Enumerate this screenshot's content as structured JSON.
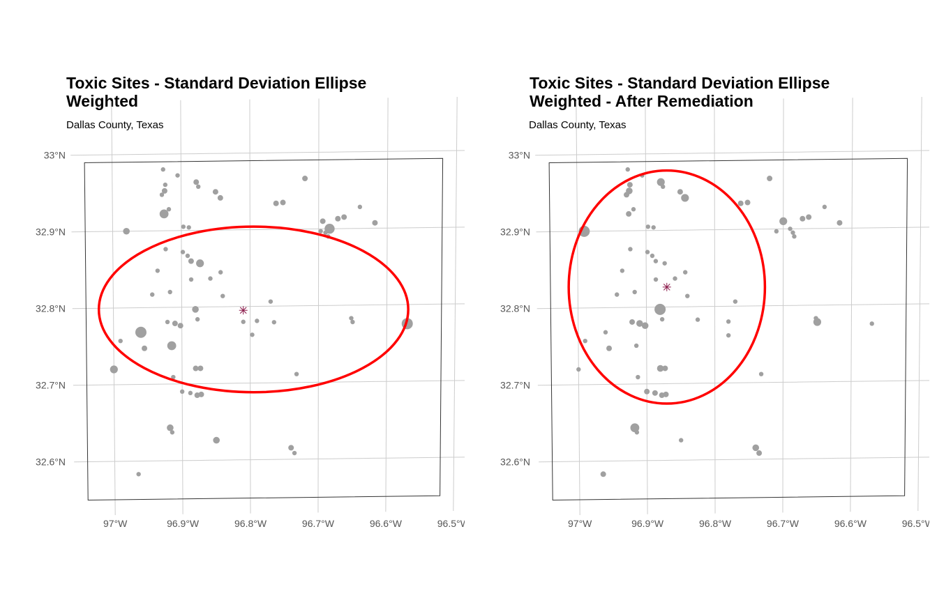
{
  "panels": [
    {
      "title_line1": "Toxic Sites - Standard Deviation Ellipse",
      "title_line2": "Weighted",
      "subtitle": "Dallas County, Texas",
      "y_ticks": [
        "33°N",
        "32.9°N",
        "32.8°N",
        "32.7°N",
        "32.6°N"
      ],
      "x_ticks": [
        "97°W",
        "96.9°W",
        "96.8°W",
        "96.7°W",
        "96.6°W",
        "96.5°W"
      ],
      "mean_center": {
        "lon": -96.81,
        "lat": 32.795
      },
      "ellipse": {
        "center_lon": -96.795,
        "center_lat": 32.796,
        "semi_major_deg_lon": 0.245,
        "semi_minor_deg_lat": 0.108,
        "color": "#ff0000"
      },
      "sites": [
        {
          "lon": -96.926,
          "lat": 32.98,
          "w": 1
        },
        {
          "lon": -96.923,
          "lat": 32.96,
          "w": 1
        },
        {
          "lon": -96.924,
          "lat": 32.952,
          "w": 1.5
        },
        {
          "lon": -96.928,
          "lat": 32.947,
          "w": 1
        },
        {
          "lon": -96.905,
          "lat": 32.972,
          "w": 1
        },
        {
          "lon": -96.878,
          "lat": 32.963,
          "w": 1.5
        },
        {
          "lon": -96.875,
          "lat": 32.957,
          "w": 1
        },
        {
          "lon": -96.85,
          "lat": 32.95,
          "w": 1.5
        },
        {
          "lon": -96.843,
          "lat": 32.942,
          "w": 1.5
        },
        {
          "lon": -96.72,
          "lat": 32.966,
          "w": 1.5
        },
        {
          "lon": -96.762,
          "lat": 32.934,
          "w": 1.5
        },
        {
          "lon": -96.752,
          "lat": 32.935,
          "w": 1.5
        },
        {
          "lon": -96.925,
          "lat": 32.922,
          "w": 3
        },
        {
          "lon": -96.918,
          "lat": 32.928,
          "w": 1
        },
        {
          "lon": -96.897,
          "lat": 32.905,
          "w": 1
        },
        {
          "lon": -96.889,
          "lat": 32.904,
          "w": 1
        },
        {
          "lon": -96.98,
          "lat": 32.9,
          "w": 2
        },
        {
          "lon": -96.923,
          "lat": 32.876,
          "w": 1
        },
        {
          "lon": -96.898,
          "lat": 32.872,
          "w": 1
        },
        {
          "lon": -96.891,
          "lat": 32.867,
          "w": 1
        },
        {
          "lon": -96.886,
          "lat": 32.86,
          "w": 1.5
        },
        {
          "lon": -96.873,
          "lat": 32.857,
          "w": 2.5
        },
        {
          "lon": -96.694,
          "lat": 32.91,
          "w": 1.5
        },
        {
          "lon": -96.684,
          "lat": 32.9,
          "w": 3.5
        },
        {
          "lon": -96.697,
          "lat": 32.897,
          "w": 1
        },
        {
          "lon": -96.672,
          "lat": 32.913,
          "w": 1.5
        },
        {
          "lon": -96.663,
          "lat": 32.915,
          "w": 1.5
        },
        {
          "lon": -96.64,
          "lat": 32.928,
          "w": 1
        },
        {
          "lon": -96.618,
          "lat": 32.907,
          "w": 1.5
        },
        {
          "lon": -96.69,
          "lat": 32.895,
          "w": 1
        },
        {
          "lon": -96.686,
          "lat": 32.89,
          "w": 1
        },
        {
          "lon": -96.935,
          "lat": 32.848,
          "w": 1
        },
        {
          "lon": -96.843,
          "lat": 32.845,
          "w": 1
        },
        {
          "lon": -96.886,
          "lat": 32.836,
          "w": 1
        },
        {
          "lon": -96.858,
          "lat": 32.837,
          "w": 1
        },
        {
          "lon": -96.917,
          "lat": 32.82,
          "w": 1
        },
        {
          "lon": -96.943,
          "lat": 32.817,
          "w": 1
        },
        {
          "lon": -96.84,
          "lat": 32.814,
          "w": 1
        },
        {
          "lon": -96.88,
          "lat": 32.797,
          "w": 2
        },
        {
          "lon": -96.91,
          "lat": 32.779,
          "w": 1.5
        },
        {
          "lon": -96.902,
          "lat": 32.776,
          "w": 1.5
        },
        {
          "lon": -96.877,
          "lat": 32.784,
          "w": 1
        },
        {
          "lon": -96.921,
          "lat": 32.781,
          "w": 1
        },
        {
          "lon": -96.96,
          "lat": 32.768,
          "w": 4
        },
        {
          "lon": -96.77,
          "lat": 32.806,
          "w": 1
        },
        {
          "lon": -96.79,
          "lat": 32.781,
          "w": 1
        },
        {
          "lon": -96.81,
          "lat": 32.78,
          "w": 1
        },
        {
          "lon": -96.765,
          "lat": 32.779,
          "w": 1
        },
        {
          "lon": -96.797,
          "lat": 32.763,
          "w": 1
        },
        {
          "lon": -96.652,
          "lat": 32.783,
          "w": 1
        },
        {
          "lon": -96.65,
          "lat": 32.778,
          "w": 1
        },
        {
          "lon": -96.57,
          "lat": 32.775,
          "w": 4
        },
        {
          "lon": -96.99,
          "lat": 32.757,
          "w": 1
        },
        {
          "lon": -96.915,
          "lat": 32.75,
          "w": 3
        },
        {
          "lon": -96.955,
          "lat": 32.747,
          "w": 1.5
        },
        {
          "lon": -97.0,
          "lat": 32.72,
          "w": 2.5
        },
        {
          "lon": -96.88,
          "lat": 32.72,
          "w": 1.5
        },
        {
          "lon": -96.873,
          "lat": 32.72,
          "w": 1.5
        },
        {
          "lon": -96.913,
          "lat": 32.709,
          "w": 1
        },
        {
          "lon": -96.732,
          "lat": 32.711,
          "w": 1
        },
        {
          "lon": -96.9,
          "lat": 32.69,
          "w": 1
        },
        {
          "lon": -96.888,
          "lat": 32.688,
          "w": 1
        },
        {
          "lon": -96.878,
          "lat": 32.685,
          "w": 1.5
        },
        {
          "lon": -96.872,
          "lat": 32.686,
          "w": 1.5
        },
        {
          "lon": -96.918,
          "lat": 32.643,
          "w": 2
        },
        {
          "lon": -96.915,
          "lat": 32.637,
          "w": 1
        },
        {
          "lon": -96.85,
          "lat": 32.626,
          "w": 2
        },
        {
          "lon": -96.74,
          "lat": 32.615,
          "w": 1.5
        },
        {
          "lon": -96.735,
          "lat": 32.608,
          "w": 1
        },
        {
          "lon": -96.965,
          "lat": 32.583,
          "w": 1
        }
      ]
    },
    {
      "title_line1": "Toxic Sites - Standard Deviation Ellipse",
      "title_line2": "Weighted - After Remediation",
      "subtitle": "Dallas County, Texas",
      "y_ticks": [
        "33°N",
        "32.9°N",
        "32.8°N",
        "32.7°N",
        "32.6°N"
      ],
      "x_ticks": [
        "97°W",
        "96.9°W",
        "96.8°W",
        "96.7°W",
        "96.6°W",
        "96.5°W"
      ],
      "mean_center": {
        "lon": -96.87,
        "lat": 32.826
      },
      "ellipse": {
        "center_lon": -96.87,
        "center_lat": 32.826,
        "semi_major_deg_lat": 0.152,
        "semi_minor_deg_lon": 0.158,
        "color": "#ff0000"
      },
      "sites": [
        {
          "lon": -96.926,
          "lat": 32.98,
          "w": 1
        },
        {
          "lon": -96.923,
          "lat": 32.96,
          "w": 1.5
        },
        {
          "lon": -96.924,
          "lat": 32.952,
          "w": 2
        },
        {
          "lon": -96.928,
          "lat": 32.947,
          "w": 1.5
        },
        {
          "lon": -96.905,
          "lat": 32.972,
          "w": 1
        },
        {
          "lon": -96.878,
          "lat": 32.963,
          "w": 2.5
        },
        {
          "lon": -96.875,
          "lat": 32.957,
          "w": 1
        },
        {
          "lon": -96.85,
          "lat": 32.95,
          "w": 1.5
        },
        {
          "lon": -96.843,
          "lat": 32.942,
          "w": 2.5
        },
        {
          "lon": -96.72,
          "lat": 32.966,
          "w": 1.5
        },
        {
          "lon": -96.762,
          "lat": 32.934,
          "w": 1.5
        },
        {
          "lon": -96.752,
          "lat": 32.935,
          "w": 1.5
        },
        {
          "lon": -96.925,
          "lat": 32.922,
          "w": 1.5
        },
        {
          "lon": -96.918,
          "lat": 32.928,
          "w": 1
        },
        {
          "lon": -96.897,
          "lat": 32.905,
          "w": 1
        },
        {
          "lon": -96.889,
          "lat": 32.904,
          "w": 1
        },
        {
          "lon": -96.99,
          "lat": 32.9,
          "w": 4
        },
        {
          "lon": -96.923,
          "lat": 32.876,
          "w": 1
        },
        {
          "lon": -96.898,
          "lat": 32.872,
          "w": 1
        },
        {
          "lon": -96.891,
          "lat": 32.867,
          "w": 1
        },
        {
          "lon": -96.886,
          "lat": 32.86,
          "w": 1
        },
        {
          "lon": -96.873,
          "lat": 32.857,
          "w": 1
        },
        {
          "lon": -96.7,
          "lat": 32.91,
          "w": 2.5
        },
        {
          "lon": -96.69,
          "lat": 32.9,
          "w": 1
        },
        {
          "lon": -96.71,
          "lat": 32.897,
          "w": 1
        },
        {
          "lon": -96.672,
          "lat": 32.913,
          "w": 1.5
        },
        {
          "lon": -96.663,
          "lat": 32.915,
          "w": 1.5
        },
        {
          "lon": -96.64,
          "lat": 32.928,
          "w": 1
        },
        {
          "lon": -96.618,
          "lat": 32.907,
          "w": 1.5
        },
        {
          "lon": -96.686,
          "lat": 32.895,
          "w": 1
        },
        {
          "lon": -96.684,
          "lat": 32.89,
          "w": 1
        },
        {
          "lon": -96.935,
          "lat": 32.848,
          "w": 1
        },
        {
          "lon": -96.843,
          "lat": 32.845,
          "w": 1
        },
        {
          "lon": -96.886,
          "lat": 32.836,
          "w": 1
        },
        {
          "lon": -96.858,
          "lat": 32.837,
          "w": 1
        },
        {
          "lon": -96.917,
          "lat": 32.82,
          "w": 1
        },
        {
          "lon": -96.943,
          "lat": 32.817,
          "w": 1
        },
        {
          "lon": -96.84,
          "lat": 32.814,
          "w": 1
        },
        {
          "lon": -96.88,
          "lat": 32.797,
          "w": 4
        },
        {
          "lon": -96.91,
          "lat": 32.779,
          "w": 2
        },
        {
          "lon": -96.902,
          "lat": 32.776,
          "w": 2
        },
        {
          "lon": -96.877,
          "lat": 32.784,
          "w": 1
        },
        {
          "lon": -96.921,
          "lat": 32.781,
          "w": 1.5
        },
        {
          "lon": -96.96,
          "lat": 32.768,
          "w": 1
        },
        {
          "lon": -96.77,
          "lat": 32.806,
          "w": 1
        },
        {
          "lon": -96.825,
          "lat": 32.783,
          "w": 1
        },
        {
          "lon": -96.78,
          "lat": 32.78,
          "w": 1
        },
        {
          "lon": -96.78,
          "lat": 32.762,
          "w": 1
        },
        {
          "lon": -96.652,
          "lat": 32.783,
          "w": 1
        },
        {
          "lon": -96.65,
          "lat": 32.778,
          "w": 2.5
        },
        {
          "lon": -96.57,
          "lat": 32.775,
          "w": 1
        },
        {
          "lon": -96.99,
          "lat": 32.757,
          "w": 1
        },
        {
          "lon": -96.915,
          "lat": 32.75,
          "w": 1
        },
        {
          "lon": -96.955,
          "lat": 32.747,
          "w": 1.5
        },
        {
          "lon": -97.0,
          "lat": 32.72,
          "w": 1
        },
        {
          "lon": -96.88,
          "lat": 32.72,
          "w": 2
        },
        {
          "lon": -96.873,
          "lat": 32.72,
          "w": 1.5
        },
        {
          "lon": -96.913,
          "lat": 32.709,
          "w": 1
        },
        {
          "lon": -96.732,
          "lat": 32.711,
          "w": 1
        },
        {
          "lon": -96.9,
          "lat": 32.69,
          "w": 1.5
        },
        {
          "lon": -96.888,
          "lat": 32.688,
          "w": 1.5
        },
        {
          "lon": -96.878,
          "lat": 32.685,
          "w": 1.5
        },
        {
          "lon": -96.872,
          "lat": 32.686,
          "w": 1.5
        },
        {
          "lon": -96.918,
          "lat": 32.643,
          "w": 3
        },
        {
          "lon": -96.915,
          "lat": 32.637,
          "w": 1
        },
        {
          "lon": -96.85,
          "lat": 32.626,
          "w": 1
        },
        {
          "lon": -96.74,
          "lat": 32.615,
          "w": 2
        },
        {
          "lon": -96.735,
          "lat": 32.608,
          "w": 1.5
        },
        {
          "lon": -96.965,
          "lat": 32.583,
          "w": 1.5
        }
      ]
    }
  ],
  "colors": {
    "site_color": "#a0a0a0",
    "ellipse_color": "#ff0000",
    "center_color": "#8b1a4a",
    "graticule_color": "#cccccc",
    "boundary_color": "#333333"
  }
}
